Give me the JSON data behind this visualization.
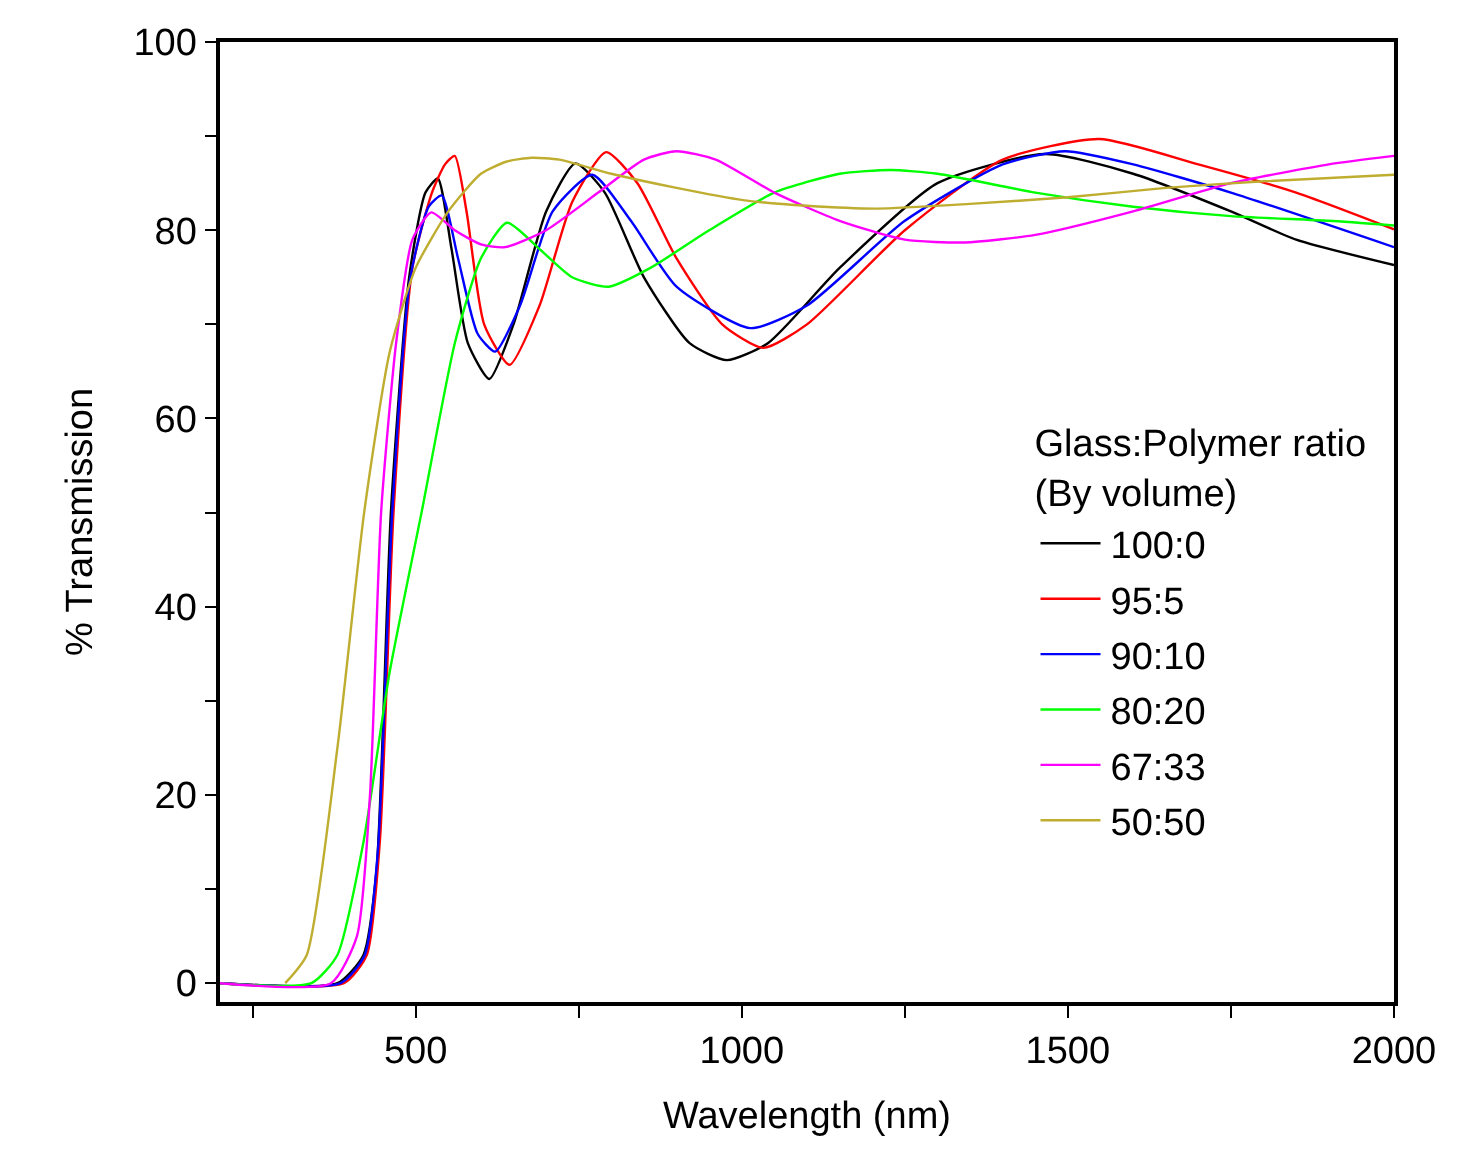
{
  "chart_data": {
    "type": "line",
    "xlabel": "Wavelength (nm)",
    "ylabel": "% Transmission",
    "legend_title": "Glass:Polymer ratio\n(By volume)",
    "xlim": [
      200,
      2000
    ],
    "ylim": [
      -2,
      100
    ],
    "xticks": [
      {
        "value": 250,
        "label": null
      },
      500,
      {
        "value": 750,
        "label": null
      },
      1000,
      {
        "value": 1250,
        "label": null
      },
      1500,
      {
        "value": 1750,
        "label": null
      },
      2000
    ],
    "yticks": [
      0,
      {
        "value": 10,
        "label": null
      },
      20,
      {
        "value": 30,
        "label": null
      },
      40,
      {
        "value": 50,
        "label": null
      },
      60,
      {
        "value": 70,
        "label": null
      },
      80,
      {
        "value": 90,
        "label": null
      },
      100
    ],
    "legend": "right",
    "marker": "none",
    "line_style": "solid",
    "series": [
      {
        "name": "100:0",
        "color": "#000000",
        "x": [
          200,
          380,
          420,
          440,
          462,
          490,
          515,
          534,
          555,
          580,
          613,
          650,
          700,
          745,
          790,
          850,
          920,
          977,
          1040,
          1150,
          1300,
          1465,
          1600,
          1750,
          1850,
          2000
        ],
        "values": [
          0,
          0,
          3,
          12,
          50,
          75,
          84,
          85.5,
          78,
          68,
          64.2,
          70,
          82,
          87.1,
          84,
          75,
          68,
          66.2,
          68,
          76,
          85,
          88.1,
          86,
          82,
          79,
          76.3
        ]
      },
      {
        "name": "95:5",
        "color": "#ff0000",
        "x": [
          200,
          390,
          425,
          445,
          466,
          495,
          525,
          545,
          560,
          578,
          605,
          644,
          690,
          740,
          792,
          840,
          900,
          970,
          1033,
          1100,
          1250,
          1400,
          1548,
          1700,
          1850,
          2000
        ],
        "values": [
          0,
          0,
          3,
          15,
          50,
          76,
          84,
          87,
          87.9,
          82,
          70,
          65.7,
          72,
          83,
          88.3,
          85,
          77,
          70,
          67.5,
          70,
          80,
          87.5,
          89.7,
          87,
          84,
          80.1
        ]
      },
      {
        "name": "90:10",
        "color": "#0000ff",
        "x": [
          200,
          385,
          422,
          442,
          464,
          492,
          520,
          540,
          565,
          595,
          622,
          660,
          710,
          771,
          830,
          900,
          1013,
          1100,
          1250,
          1400,
          1496,
          1600,
          1750,
          2000
        ],
        "values": [
          0,
          0,
          3,
          14,
          50,
          75,
          82.5,
          83.7,
          77,
          69,
          67.1,
          72,
          82,
          85.9,
          81,
          74,
          69.6,
          72,
          81,
          87,
          88.4,
          87,
          84,
          78.2
        ]
      },
      {
        "name": "80:20",
        "color": "#00ff00",
        "x": [
          200,
          340,
          380,
          420,
          460,
          509,
          560,
          600,
          640,
          690,
          740,
          796,
          860,
          950,
          1050,
          1150,
          1228,
          1300,
          1450,
          1600,
          1750,
          1900,
          2000
        ],
        "values": [
          0,
          0,
          3,
          15,
          33,
          50,
          68,
          77,
          80.8,
          78,
          75,
          74,
          76,
          80,
          84,
          86,
          86.4,
          86,
          84,
          82.5,
          81.5,
          81,
          80.5
        ]
      },
      {
        "name": "67:33",
        "color": "#ff00ff",
        "x": [
          200,
          370,
          410,
          430,
          447,
          470,
          495,
          524,
          560,
          600,
          637,
          700,
          780,
          850,
          900,
          960,
          1050,
          1150,
          1250,
          1342,
          1450,
          1600,
          1750,
          1900,
          2000
        ],
        "values": [
          0,
          0,
          5,
          20,
          50,
          68,
          79,
          81.9,
          80,
          78.5,
          78.2,
          80,
          84,
          87.5,
          88.4,
          87.5,
          84,
          81,
          79,
          78.7,
          79.5,
          82,
          85,
          87,
          87.9
        ]
      },
      {
        "name": "50:50",
        "color": "#bfad30",
        "x": [
          300,
          333,
          380,
          421,
          460,
          500,
          550,
          600,
          640,
          678,
          720,
          800,
          900,
          1002,
          1100,
          1208,
          1350,
          1500,
          1650,
          1800,
          2000
        ],
        "values": [
          0,
          3,
          25,
          50,
          67,
          76,
          82,
          86,
          87.3,
          87.7,
          87.5,
          86,
          84.5,
          83.2,
          82.6,
          82.3,
          82.8,
          83.5,
          84.5,
          85.2,
          85.9
        ]
      }
    ]
  }
}
